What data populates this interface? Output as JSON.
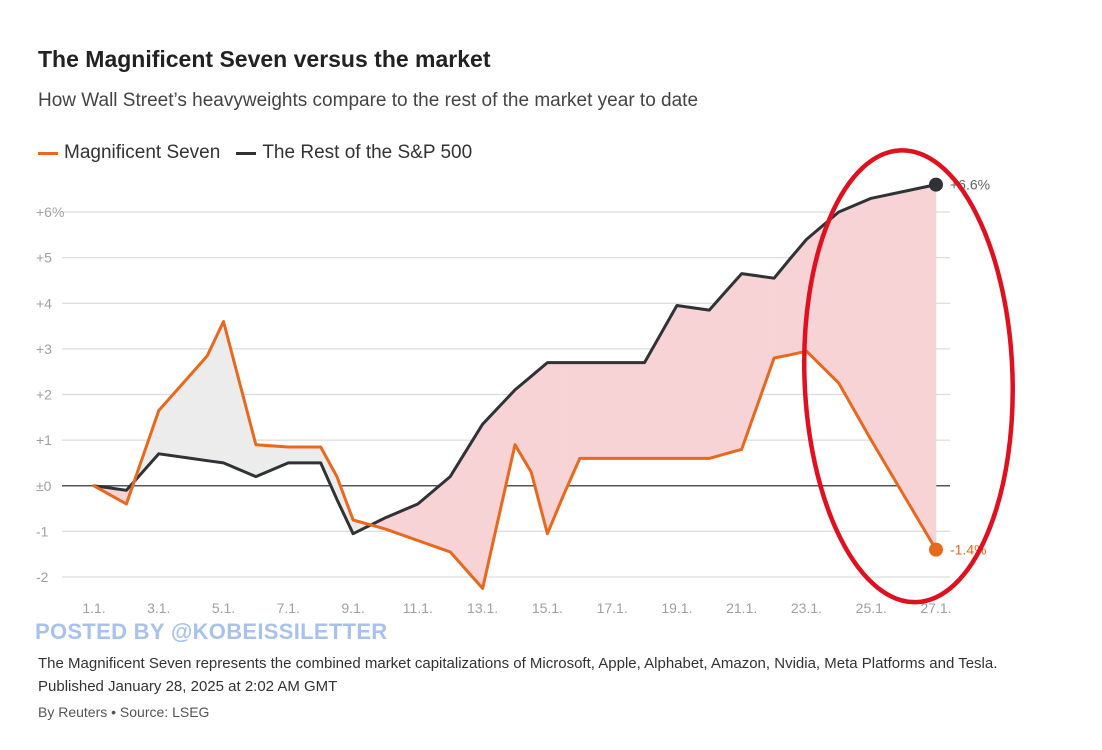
{
  "header": {
    "title": "The Magnificent Seven versus the market",
    "subtitle": "How Wall Street’s heavyweights compare to the rest of the market year to date"
  },
  "footer": {
    "watermark": "POSTED BY @KOBEISSILETTER",
    "note": "The Magnificent Seven represents the combined market capitalizations of Microsoft, Apple, Alphabet, Amazon, Nvidia, Meta Platforms and Tesla. Published January 28, 2025 at 2:02 AM GMT",
    "credit": "By Reuters • Source: LSEG"
  },
  "chart_data": {
    "type": "line",
    "title": "The Magnificent Seven versus the market",
    "subtitle": "How Wall Street’s heavyweights compare to the rest of the market year to date",
    "legend_position": "top-left",
    "grid": true,
    "x": [
      0,
      0.5,
      1,
      2,
      3,
      3.5,
      4,
      5,
      6,
      7,
      7.5,
      8,
      9,
      10,
      11,
      12,
      13,
      13.5,
      14,
      14.5,
      15,
      15.5,
      16,
      16.5,
      17,
      18,
      19,
      19.5,
      20,
      20.5,
      21,
      21.5,
      22,
      23,
      24,
      25,
      26
    ],
    "x_ticks": [
      0,
      2,
      4,
      6,
      8,
      10,
      12,
      14,
      16,
      18,
      20,
      22,
      24,
      26
    ],
    "x_tick_labels": [
      "1.1.",
      "3.1.",
      "5.1.",
      "7.1.",
      "9.1.",
      "11.1.",
      "13.1.",
      "15.1.",
      "17.1.",
      "19.1.",
      "21.1.",
      "23.1.",
      "25.1.",
      "27.1."
    ],
    "ylim": [
      -2.4,
      6.4
    ],
    "y_ticks": [
      -2,
      -1,
      0,
      1,
      2,
      3,
      4,
      5,
      6
    ],
    "y_tick_labels": [
      "-2",
      "-1",
      "±0",
      "+1",
      "+2",
      "+3",
      "+4",
      "+5",
      "+6%"
    ],
    "series": [
      {
        "name": "Magnificent Seven",
        "color": "#e8681d",
        "values": [
          0,
          -0.2,
          -0.4,
          1.65,
          2.45,
          2.85,
          3.6,
          0.9,
          0.85,
          0.85,
          0.2,
          -0.75,
          -0.95,
          -1.2,
          -1.45,
          -2.25,
          0.9,
          0.3,
          -1.05,
          -0.2,
          0.6,
          0.6,
          0.6,
          0.6,
          0.6,
          0.6,
          0.6,
          0.7,
          0.8,
          1.8,
          2.8,
          2.87,
          2.95,
          2.25,
          1.0,
          -0.2,
          -1.4
        ],
        "end_label": "-1.4%"
      },
      {
        "name": "The Rest of the S&P 500",
        "color": "#2f3336",
        "values": [
          0,
          -0.05,
          -0.1,
          0.7,
          0.6,
          0.55,
          0.5,
          0.2,
          0.5,
          0.5,
          -0.3,
          -1.05,
          -0.7,
          -0.4,
          0.2,
          1.35,
          2.1,
          2.4,
          2.7,
          2.7,
          2.7,
          2.7,
          2.7,
          2.7,
          2.7,
          3.95,
          3.85,
          4.25,
          4.65,
          4.6,
          4.55,
          4.98,
          5.4,
          6.0,
          6.3,
          6.45,
          6.6
        ],
        "end_label": "+6.6%"
      }
    ],
    "shading": {
      "above_color": "#ececec",
      "below_color": "#f7d3d6"
    },
    "highlight": {
      "shape": "ellipse",
      "color": "#e0101f",
      "x_center": 25.15,
      "y_center": 2.4
    }
  }
}
